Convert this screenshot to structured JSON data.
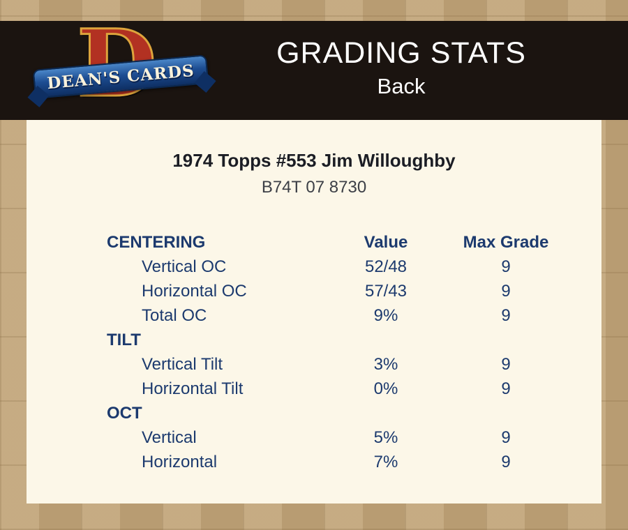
{
  "colors": {
    "page-bg": "#bfa379",
    "bar-bg": "#1b1410",
    "panel-bg": "#fcf7e8",
    "navy": "#1c3a6e",
    "title-color": "#1b1d24",
    "cert-color": "#3c3f46",
    "header-text": "#ffffff",
    "logo-red": "#b23122",
    "logo-gold": "#dda43c",
    "ribbon-blue": "#1d4d92",
    "ribbon-blue-dark": "#0e2f63"
  },
  "header": {
    "title": "GRADING STATS",
    "subtitle": "Back",
    "logo": {
      "monogram": "D",
      "brand": "DEAN'S CARDS"
    }
  },
  "card": {
    "title": "1974 Topps #553 Jim Willoughby",
    "cert_id": "B74T 07 8730"
  },
  "table": {
    "rows": [
      {
        "type": "header",
        "label": "CENTERING",
        "value": "Value",
        "grade": "Max Grade"
      },
      {
        "type": "data",
        "label": "Vertical OC",
        "value": "52/48",
        "grade": "9"
      },
      {
        "type": "data",
        "label": "Horizontal OC",
        "value": "57/43",
        "grade": "9"
      },
      {
        "type": "data",
        "label": "Total OC",
        "value": "9%",
        "grade": "9"
      },
      {
        "type": "section",
        "label": "TILT",
        "value": "",
        "grade": ""
      },
      {
        "type": "data",
        "label": "Vertical Tilt",
        "value": "3%",
        "grade": "9"
      },
      {
        "type": "data",
        "label": "Horizontal Tilt",
        "value": "0%",
        "grade": "9"
      },
      {
        "type": "section",
        "label": "OCT",
        "value": "",
        "grade": ""
      },
      {
        "type": "data",
        "label": "Vertical",
        "value": "5%",
        "grade": "9"
      },
      {
        "type": "data",
        "label": "Horizontal",
        "value": "7%",
        "grade": "9"
      }
    ]
  }
}
